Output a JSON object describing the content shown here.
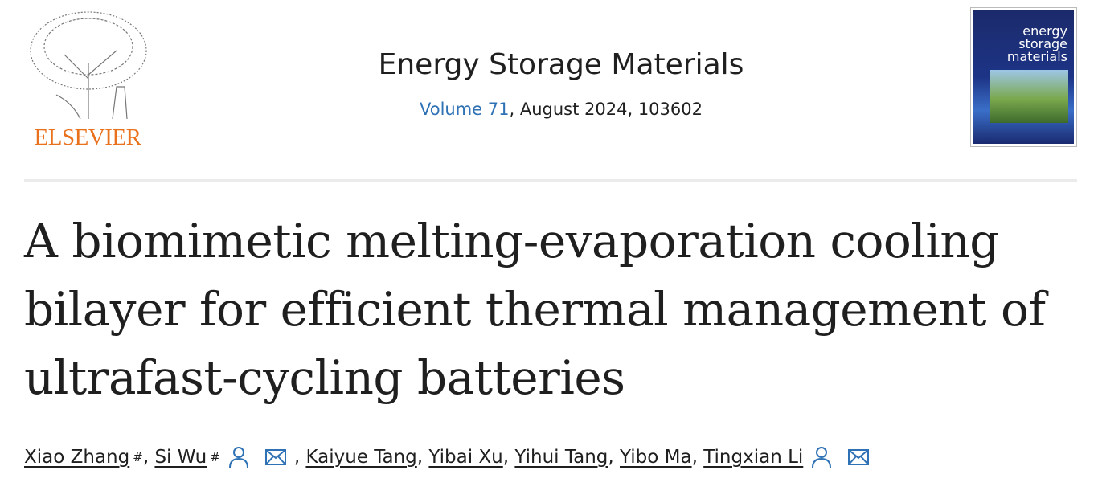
{
  "publisher": {
    "logo_text": "ELSEVIER"
  },
  "journal": {
    "title": "Energy Storage Materials",
    "volume_link": "Volume 71",
    "issue_rest": ", August 2024, 103602",
    "cover_text": "energy storage materials"
  },
  "article": {
    "title": "A biomimetic melting-evaporation cooling bilayer for efficient thermal management of ultrafast-cycling batteries"
  },
  "authors": [
    {
      "name": "Xiao Zhang",
      "mark": "#"
    },
    {
      "name": "Si Wu",
      "mark": "#"
    },
    {
      "name": "Kaiyue Tang"
    },
    {
      "name": "Yibai Xu"
    },
    {
      "name": "Yihui Tang"
    },
    {
      "name": "Yibo Ma"
    },
    {
      "name": "Tingxian Li"
    }
  ],
  "colors": {
    "link": "#2e72b5",
    "elsevier": "#e9711c"
  }
}
